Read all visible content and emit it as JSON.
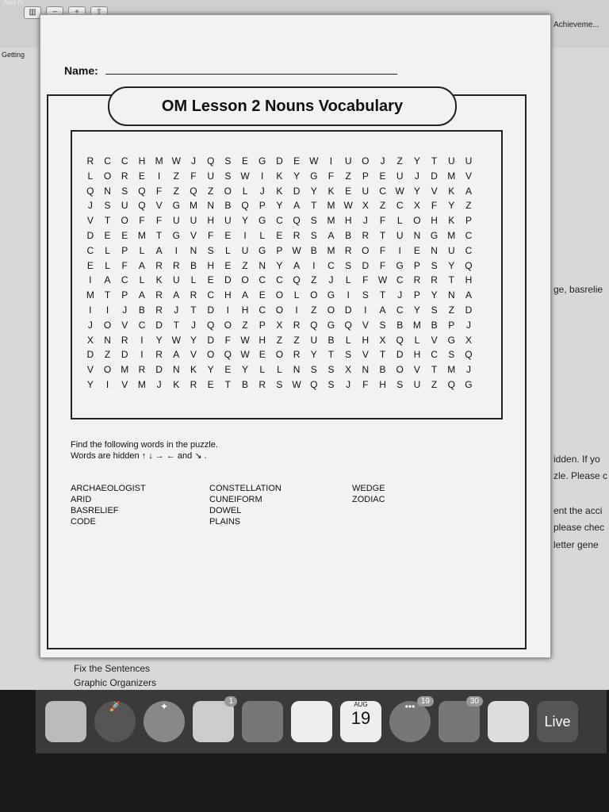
{
  "background": {
    "top_left": "Add N",
    "top_right": "Achieveme...",
    "sidebar": "Getting",
    "right_snippets": [
      "ge, basrelie",
      "idden. If yo",
      "zle. Please c",
      "ent the acci",
      "please chec",
      "letter gene"
    ],
    "bottom_items": [
      "Fix the Sentences",
      "Graphic Organizers"
    ]
  },
  "worksheet": {
    "name_label": "Name:",
    "title": "OM Lesson 2 Nouns Vocabulary",
    "grid": [
      "RCCHMWJQSEGDEWIUOJZYTUU",
      "LOREIZFUSWIKYGFZPEUJDMV",
      "QNSQFZQZOLJKDYKEUCWYVKA",
      "JSUQVGMNBQPYATMWXZCXFYZ",
      "VTOFFUUHUYGCQSMHJFLOHKP",
      "DEEMTGVFEILERSABRTUNGMC",
      "CLPLAINSLUGPWBMROFIENUC",
      "ELFARRBHEZNYAICSDFGPSYQ",
      "IACLKULEDOCCQZJLFWCRRTH",
      "MTPARARCHAEOLOGISTJPYNA",
      "IIJBRJTDIHCOIZODIACYSZD",
      "JOVCDTJQOZPXRQGQVSBMBPJ",
      "XNRIYWYDFWHZZUBLHXQLVGX",
      "DZDIRAVOQWEORYTSVTDHCSQ",
      "VOMRDNKYEYLLNSSXNBOVTMJ",
      "YIVMJKRETBRSWQSJFHSUZQG"
    ],
    "instruction1": "Find the following words in the puzzle.",
    "instruction2": "Words are hidden ↑ ↓ → ← and ↘ .",
    "word_columns": [
      [
        "ARCHAEOLOGIST",
        "ARID",
        "BASRELIEF",
        "CODE"
      ],
      [
        "CONSTELLATION",
        "CUNEIFORM",
        "DOWEL",
        "PLAINS"
      ],
      [
        "WEDGE",
        "ZODIAC"
      ]
    ]
  },
  "dock": {
    "calendar_month": "AUG",
    "calendar_day": "19",
    "badges": [
      "1",
      "19",
      "30"
    ],
    "live_label": "Live"
  }
}
